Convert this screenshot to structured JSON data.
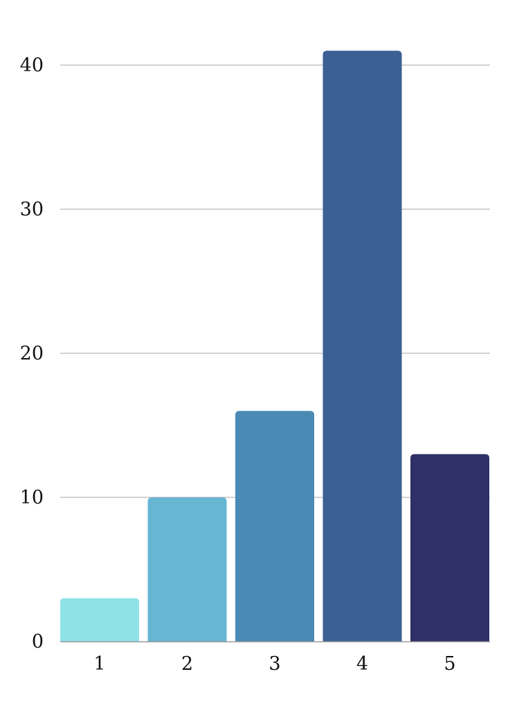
{
  "chart_data": {
    "type": "bar",
    "title": "",
    "xlabel": "",
    "ylabel": "",
    "categories": [
      "1",
      "2",
      "3",
      "4",
      "5"
    ],
    "values": [
      3,
      10,
      16,
      41,
      13
    ],
    "colors": [
      "#8ee3e6",
      "#67b6d2",
      "#4a8ab5",
      "#3c5f94",
      "#2e3066"
    ],
    "ylim": [
      0,
      41
    ],
    "yticks": [
      0,
      10,
      20,
      30,
      40
    ],
    "grid": true,
    "legend": "none"
  }
}
